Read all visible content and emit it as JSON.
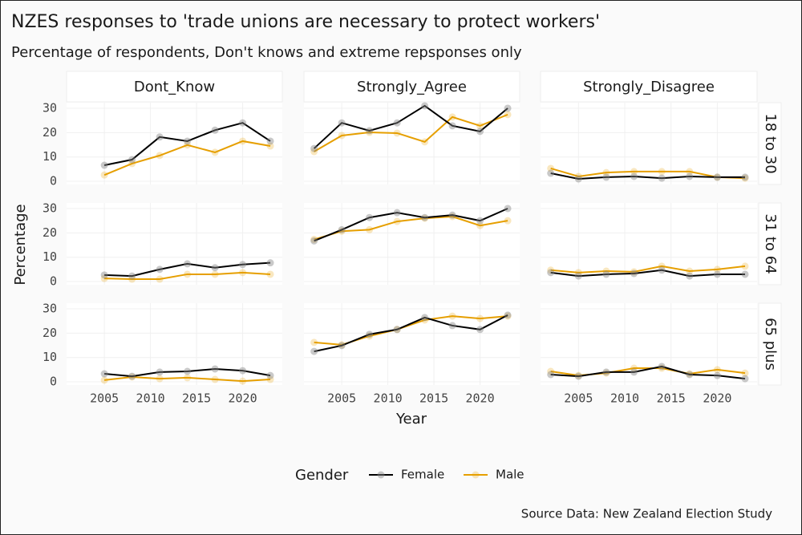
{
  "chart_data": {
    "type": "line",
    "title": "NZES responses to 'trade unions are necessary to protect workers'",
    "subtitle": "Percentage of respondents, Don't knows and extreme repsponses only",
    "x_label": "Year",
    "y_label": "Percentage",
    "legend_title": "Gender",
    "source": "Source Data: New Zealand Election Study",
    "columns": [
      "Dont_Know",
      "Strongly_Agree",
      "Strongly_Disagree"
    ],
    "rows": [
      "18 to 30",
      "31 to 64",
      "65 plus"
    ],
    "x": [
      2002,
      2005,
      2008,
      2011,
      2014,
      2017,
      2020,
      2023
    ],
    "xlim": [
      2000.9,
      2024.3
    ],
    "xticks": [
      2005,
      2010,
      2015,
      2020
    ],
    "ylim": [
      -1.3,
      32.3
    ],
    "yticks": [
      0,
      10,
      20,
      30
    ],
    "series": [
      {
        "name": "Female",
        "color": "#000000",
        "values": [
          [
            [
              null,
              6.6,
              8.9,
              18.2,
              16.5,
              21,
              24,
              16.5
            ],
            [
              13.5,
              24,
              20.8,
              24,
              31,
              22.8,
              20.5,
              30
            ],
            [
              3.3,
              1.0,
              1.7,
              2.0,
              1.3,
              2.0,
              1.7,
              1.7
            ]
          ],
          [
            [
              null,
              2.7,
              2.3,
              5,
              7.3,
              5.7,
              7,
              7.7
            ],
            [
              16.7,
              21.3,
              26.3,
              28.3,
              26.3,
              27.3,
              25,
              30
            ],
            [
              3.7,
              2.3,
              3,
              3.3,
              4.7,
              2.3,
              3,
              3
            ]
          ],
          [
            [
              null,
              3.3,
              2.3,
              4,
              4.3,
              5.3,
              4.6,
              2.6
            ],
            [
              12.5,
              14.9,
              19.5,
              21.5,
              26.4,
              23.1,
              21.5,
              27.4
            ],
            [
              3,
              2.3,
              4,
              4,
              6.3,
              3,
              2.6,
              1.3
            ]
          ]
        ]
      },
      {
        "name": "Male",
        "color": "#E69F00",
        "values": [
          [
            [
              null,
              2.6,
              7.3,
              10.6,
              14.9,
              11.9,
              16.5,
              14.5
            ],
            [
              12.2,
              18.8,
              20.1,
              19.8,
              16.2,
              26.4,
              22.8,
              27.4
            ],
            [
              5.3,
              2.0,
              3.6,
              4.0,
              4.0,
              4.0,
              1.7,
              1.3
            ]
          ],
          [
            [
              null,
              1.3,
              1,
              1,
              3,
              3,
              3.7,
              3
            ],
            [
              17.3,
              20.7,
              21.3,
              24.7,
              26,
              26.7,
              23,
              25
            ],
            [
              4.7,
              3.7,
              4.3,
              4,
              6.3,
              4.3,
              5,
              6.3
            ]
          ],
          [
            [
              null,
              0.7,
              2,
              1.3,
              1.7,
              1,
              0.3,
              1
            ],
            [
              16.2,
              15.2,
              18.8,
              21.5,
              25.4,
              27,
              26,
              27
            ],
            [
              4.3,
              2.6,
              3.6,
              5.6,
              5.6,
              3.3,
              5,
              3.6
            ]
          ]
        ]
      }
    ]
  }
}
